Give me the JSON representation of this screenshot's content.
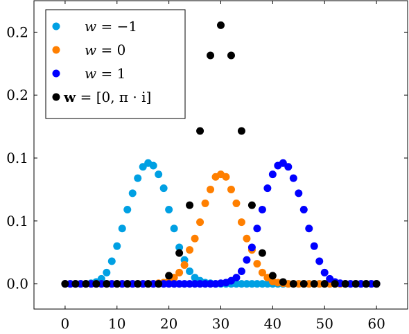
{
  "chart_data": {
    "type": "scatter",
    "title": "",
    "xlabel": "",
    "ylabel": "",
    "xlim": [
      -6,
      66
    ],
    "ylim": [
      -0.02,
      0.225
    ],
    "x_ticks": [
      0,
      10,
      20,
      30,
      40,
      50,
      60
    ],
    "x_tick_labels": [
      "0",
      "10",
      "20",
      "30",
      "40",
      "50",
      "60"
    ],
    "y_ticks": [
      0,
      0.05,
      0.1,
      0.15,
      0.2
    ],
    "y_tick_labels": [
      "0.0",
      "0.1",
      "0.1",
      "0.2",
      "0.2"
    ],
    "grid": false,
    "legend_position": "top-left",
    "series": [
      {
        "name": "w = −1",
        "color": "#00a0e3",
        "x": [
          0,
          1,
          2,
          3,
          4,
          5,
          6,
          7,
          8,
          9,
          10,
          11,
          12,
          13,
          14,
          15,
          16,
          17,
          18,
          19,
          20,
          21,
          22,
          23,
          24,
          25,
          26,
          27,
          28,
          29,
          30,
          31,
          32,
          33,
          34,
          35,
          36,
          37,
          38,
          39,
          40,
          41,
          42,
          43,
          44,
          45,
          46,
          47,
          48,
          49,
          50,
          51,
          52,
          53,
          54,
          55,
          56,
          57,
          58,
          59,
          60
        ],
        "y": [
          0,
          0,
          0,
          0,
          0,
          0.0005,
          0.0015,
          0.004,
          0.009,
          0.018,
          0.03,
          0.044,
          0.059,
          0.072,
          0.084,
          0.093,
          0.096,
          0.094,
          0.087,
          0.076,
          0.059,
          0.044,
          0.029,
          0.019,
          0.01,
          0.005,
          0.0025,
          0.001,
          0.0005,
          0,
          0,
          0,
          0,
          0,
          0,
          0,
          0,
          0,
          0,
          0,
          0,
          0,
          0,
          0,
          0,
          0,
          0,
          0,
          0,
          0,
          0,
          0,
          0,
          0,
          0,
          0,
          0,
          0,
          0,
          0,
          0
        ]
      },
      {
        "name": "w = 0",
        "color": "#ff7f00",
        "x": [
          0,
          1,
          2,
          3,
          4,
          5,
          6,
          7,
          8,
          9,
          10,
          11,
          12,
          13,
          14,
          15,
          16,
          17,
          18,
          19,
          20,
          21,
          22,
          23,
          24,
          25,
          26,
          27,
          28,
          29,
          30,
          31,
          32,
          33,
          34,
          35,
          36,
          37,
          38,
          39,
          40,
          41,
          42,
          43,
          44,
          45,
          46,
          47,
          48,
          49,
          50,
          51,
          52,
          53,
          54,
          55,
          56,
          57,
          58,
          59,
          60
        ],
        "y": [
          0,
          0,
          0,
          0,
          0,
          0,
          0,
          0,
          0,
          0,
          0,
          0,
          0,
          0,
          0,
          0,
          0,
          0,
          0.0005,
          0.001,
          0.002,
          0.005,
          0.009,
          0.015,
          0.027,
          0.036,
          0.049,
          0.064,
          0.075,
          0.085,
          0.087,
          0.085,
          0.075,
          0.064,
          0.049,
          0.036,
          0.027,
          0.016,
          0.009,
          0.005,
          0.002,
          0.001,
          0.0005,
          0,
          0,
          0,
          0,
          0,
          0,
          0,
          0,
          0,
          0,
          0,
          0,
          0,
          0,
          0,
          0,
          0,
          0
        ]
      },
      {
        "name": "w = 1",
        "color": "#0000ff",
        "x": [
          0,
          1,
          2,
          3,
          4,
          5,
          6,
          7,
          8,
          9,
          10,
          11,
          12,
          13,
          14,
          15,
          16,
          17,
          18,
          19,
          20,
          21,
          22,
          23,
          24,
          25,
          26,
          27,
          28,
          29,
          30,
          31,
          32,
          33,
          34,
          35,
          36,
          37,
          38,
          39,
          40,
          41,
          42,
          43,
          44,
          45,
          46,
          47,
          48,
          49,
          50,
          51,
          52,
          53,
          54,
          55,
          56,
          57,
          58,
          59,
          60
        ],
        "y": [
          0,
          0,
          0,
          0,
          0,
          0,
          0,
          0,
          0,
          0,
          0,
          0,
          0,
          0,
          0,
          0,
          0,
          0,
          0,
          0,
          0,
          0,
          0,
          0,
          0,
          0,
          0,
          0,
          0,
          0,
          0.0005,
          0.001,
          0.0025,
          0.005,
          0.01,
          0.019,
          0.029,
          0.044,
          0.059,
          0.076,
          0.087,
          0.094,
          0.096,
          0.093,
          0.084,
          0.072,
          0.059,
          0.044,
          0.03,
          0.018,
          0.009,
          0.004,
          0.0015,
          0.0005,
          0,
          0,
          0,
          0,
          0,
          0,
          0
        ]
      },
      {
        "name": "w = [0, π · i]",
        "color": "#000000",
        "x": [
          0,
          2,
          4,
          6,
          8,
          10,
          12,
          14,
          16,
          18,
          20,
          22,
          24,
          26,
          28,
          30,
          32,
          34,
          36,
          38,
          40,
          42,
          44,
          46,
          48,
          50,
          52,
          54,
          56,
          58,
          60
        ],
        "y": [
          0,
          0,
          0,
          0,
          0,
          0,
          0,
          0,
          0,
          0,
          0.0065,
          0.0245,
          0.0625,
          0.1215,
          0.1815,
          0.2055,
          0.1815,
          0.1215,
          0.0625,
          0.0245,
          0.0065,
          0.0015,
          0,
          0,
          0,
          0,
          0,
          0,
          0,
          0,
          0
        ]
      }
    ]
  },
  "legend": {
    "items": [
      {
        "var": "w",
        "rest": " = −1",
        "bold": false,
        "color": "#00a0e3"
      },
      {
        "var": "w",
        "rest": " = 0",
        "bold": false,
        "color": "#ff7f00"
      },
      {
        "var": "w",
        "rest": " = 1",
        "bold": false,
        "color": "#0000ff"
      },
      {
        "var": "w",
        "rest": " = [0, π · i]",
        "bold": true,
        "color": "#000000"
      }
    ]
  }
}
